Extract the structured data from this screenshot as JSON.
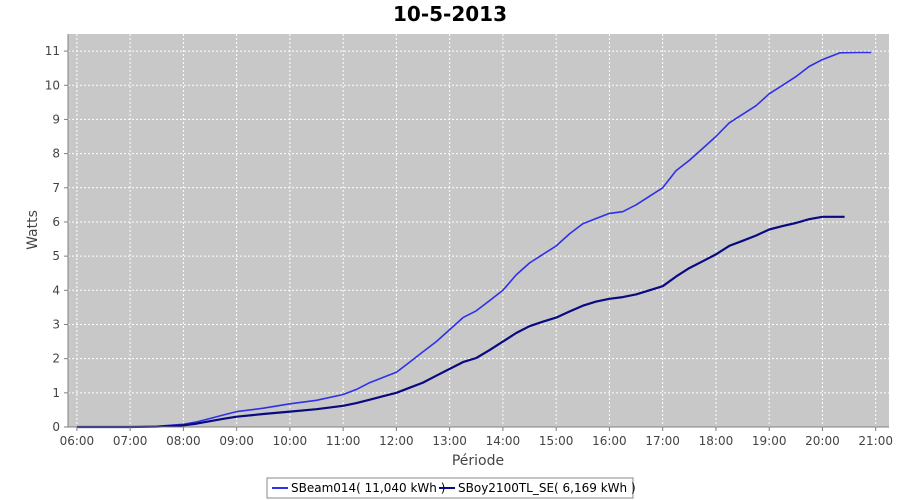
{
  "chart_data": {
    "type": "line",
    "title": "10-5-2013",
    "xlabel": "Période",
    "ylabel": "Watts",
    "x_ticks": [
      "06:00",
      "07:00",
      "08:00",
      "09:00",
      "10:00",
      "11:00",
      "12:00",
      "13:00",
      "14:00",
      "15:00",
      "16:00",
      "17:00",
      "18:00",
      "19:00",
      "20:00",
      "21:00"
    ],
    "y_ticks": [
      "0",
      "1",
      "2",
      "3",
      "4",
      "5",
      "6",
      "7",
      "8",
      "9",
      "10",
      "11"
    ],
    "xlim": [
      "05:50",
      "21:15"
    ],
    "ylim": [
      0,
      11.5
    ],
    "grid": true,
    "legend_position": "bottom",
    "plot_background": "#c8c8c8",
    "series": [
      {
        "name": "SBeam014( 11,040 kWh )",
        "color": "#3030e8",
        "x": [
          "06:00",
          "07:00",
          "07:30",
          "08:00",
          "08:15",
          "08:30",
          "08:45",
          "09:00",
          "09:30",
          "10:00",
          "10:30",
          "11:00",
          "11:15",
          "11:30",
          "11:45",
          "12:00",
          "12:15",
          "12:30",
          "12:45",
          "13:00",
          "13:15",
          "13:30",
          "13:45",
          "14:00",
          "14:15",
          "14:30",
          "14:45",
          "15:00",
          "15:15",
          "15:30",
          "15:45",
          "16:00",
          "16:15",
          "16:30",
          "16:45",
          "17:00",
          "17:15",
          "17:30",
          "17:45",
          "18:00",
          "18:15",
          "18:30",
          "18:45",
          "19:00",
          "19:15",
          "19:30",
          "19:45",
          "20:00",
          "20:20",
          "20:40",
          "20:55"
        ],
        "values": [
          0,
          0,
          0.02,
          0.08,
          0.15,
          0.25,
          0.35,
          0.45,
          0.55,
          0.68,
          0.78,
          0.95,
          1.1,
          1.3,
          1.45,
          1.6,
          1.9,
          2.2,
          2.5,
          2.85,
          3.2,
          3.4,
          3.7,
          4.0,
          4.45,
          4.8,
          5.05,
          5.3,
          5.65,
          5.95,
          6.1,
          6.25,
          6.3,
          6.5,
          6.75,
          7.0,
          7.5,
          7.8,
          8.15,
          8.5,
          8.9,
          9.15,
          9.4,
          9.75,
          10.0,
          10.25,
          10.55,
          10.75,
          10.95,
          10.96,
          10.96
        ]
      },
      {
        "name": "SBoy2100TL_SE( 6,169 kWh )",
        "color": "#0a0a80",
        "x": [
          "06:00",
          "07:00",
          "07:30",
          "08:00",
          "08:15",
          "08:30",
          "08:45",
          "09:00",
          "09:30",
          "10:00",
          "10:30",
          "11:00",
          "11:15",
          "11:30",
          "11:45",
          "12:00",
          "12:15",
          "12:30",
          "12:45",
          "13:00",
          "13:15",
          "13:30",
          "13:45",
          "14:00",
          "14:15",
          "14:30",
          "14:45",
          "15:00",
          "15:15",
          "15:30",
          "15:45",
          "16:00",
          "16:15",
          "16:30",
          "16:45",
          "17:00",
          "17:15",
          "17:30",
          "17:45",
          "18:00",
          "18:15",
          "18:30",
          "18:45",
          "19:00",
          "19:15",
          "19:30",
          "19:45",
          "20:00",
          "20:20",
          "20:25"
        ],
        "values": [
          0,
          0,
          0.01,
          0.05,
          0.1,
          0.17,
          0.24,
          0.3,
          0.38,
          0.45,
          0.52,
          0.62,
          0.7,
          0.8,
          0.9,
          1.0,
          1.15,
          1.3,
          1.5,
          1.7,
          1.9,
          2.02,
          2.25,
          2.5,
          2.75,
          2.95,
          3.08,
          3.2,
          3.38,
          3.55,
          3.67,
          3.75,
          3.8,
          3.88,
          4.0,
          4.12,
          4.4,
          4.65,
          4.85,
          5.05,
          5.3,
          5.45,
          5.6,
          5.78,
          5.88,
          5.97,
          6.08,
          6.15,
          6.15,
          6.15
        ]
      }
    ]
  }
}
